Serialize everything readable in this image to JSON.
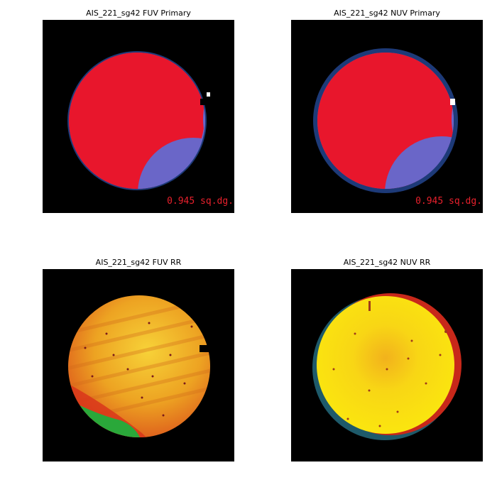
{
  "panels": [
    {
      "title": "AIS_221_sg42 FUV Primary",
      "annotation": "0.945 sq.dg."
    },
    {
      "title": "AIS_221_sg42 NUV Primary",
      "annotation": "0.945 sq.dg."
    },
    {
      "title": "AIS_221_sg42 FUV RR"
    },
    {
      "title": "AIS_221_sg42 NUV RR"
    }
  ]
}
